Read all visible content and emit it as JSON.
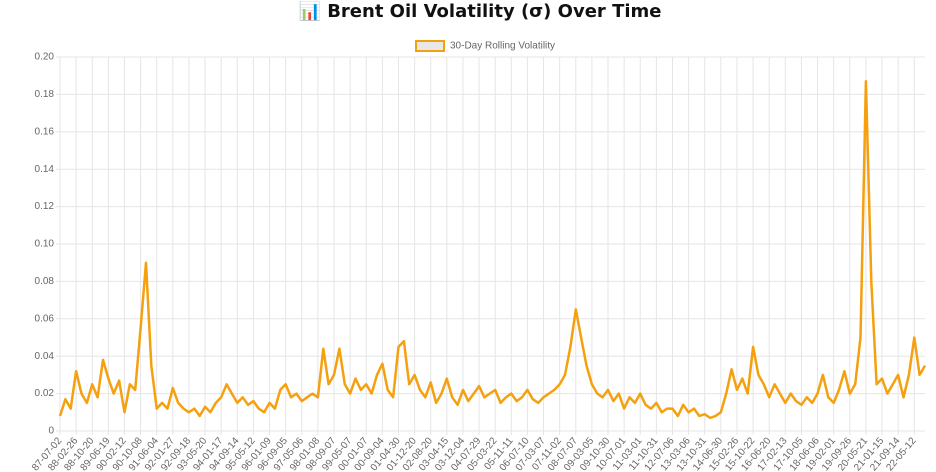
{
  "chart_data": {
    "type": "line",
    "title": "📊 Brent Oil Volatility (σ) Over Time",
    "legend": "top",
    "categories": [
      "87-07-02",
      null,
      null,
      "88-02-26",
      null,
      null,
      "88-10-20",
      null,
      null,
      "89-06-19",
      null,
      null,
      "90-02-12",
      null,
      null,
      "90-10-08",
      null,
      null,
      "91-06-04",
      null,
      null,
      "92-01-27",
      null,
      null,
      "92-09-18",
      null,
      null,
      "93-05-20",
      null,
      null,
      "94-01-17",
      null,
      null,
      "94-09-14",
      null,
      null,
      "95-05-12",
      null,
      null,
      "96-01-09",
      null,
      null,
      "96-09-05",
      null,
      null,
      "97-05-06",
      null,
      null,
      "98-01-08",
      null,
      null,
      "98-09-07",
      null,
      null,
      "99-05-07",
      null,
      null,
      "00-01-07",
      null,
      null,
      "00-09-04",
      null,
      null,
      "01-04-30",
      null,
      null,
      "01-12-20",
      null,
      null,
      "02-08-20",
      null,
      null,
      "03-04-15",
      null,
      null,
      "03-12-04",
      null,
      null,
      "04-07-29",
      null,
      null,
      "05-03-22",
      null,
      null,
      "05-11-11",
      null,
      null,
      "06-07-10",
      null,
      null,
      "07-03-07",
      null,
      null,
      "07-11-02",
      null,
      null,
      "08-07-07",
      null,
      null,
      "09-03-05",
      null,
      null,
      "09-10-30",
      null,
      null,
      "10-07-01",
      null,
      null,
      "11-03-01",
      null,
      null,
      "11-10-31",
      null,
      null,
      "12-07-06",
      null,
      null,
      "13-03-06",
      null,
      null,
      "13-10-31",
      null,
      null,
      "14-06-30",
      null,
      null,
      "15-02-26",
      null,
      null,
      "15-10-22",
      null,
      null,
      "16-06-20",
      null,
      null,
      "17-02-13",
      null,
      null,
      "17-10-05",
      null,
      null,
      "18-06-06",
      null,
      null,
      "19-02-01",
      null,
      null,
      "19-09-26",
      null,
      null,
      "20-05-21",
      null,
      null,
      "21-01-15",
      null,
      null,
      "21-09-14",
      null,
      null,
      "22-05-12",
      null,
      null
    ],
    "series": [
      {
        "name": "30-Day Rolling Volatility",
        "color": "#f5a00f",
        "values": [
          0.008,
          0.017,
          0.012,
          0.032,
          0.02,
          0.015,
          0.025,
          0.018,
          0.038,
          0.028,
          0.02,
          0.027,
          0.01,
          0.025,
          0.022,
          0.055,
          0.09,
          0.035,
          0.012,
          0.015,
          0.012,
          0.023,
          0.015,
          0.012,
          0.01,
          0.012,
          0.008,
          0.013,
          0.01,
          0.015,
          0.018,
          0.025,
          0.02,
          0.015,
          0.018,
          0.014,
          0.016,
          0.012,
          0.01,
          0.015,
          0.012,
          0.022,
          0.025,
          0.018,
          0.02,
          0.016,
          0.018,
          0.02,
          0.018,
          0.044,
          0.025,
          0.03,
          0.044,
          0.025,
          0.02,
          0.028,
          0.022,
          0.025,
          0.02,
          0.03,
          0.036,
          0.022,
          0.018,
          0.045,
          0.048,
          0.025,
          0.03,
          0.022,
          0.018,
          0.026,
          0.015,
          0.02,
          0.028,
          0.018,
          0.014,
          0.022,
          0.016,
          0.02,
          0.024,
          0.018,
          0.02,
          0.022,
          0.015,
          0.018,
          0.02,
          0.016,
          0.018,
          0.022,
          0.017,
          0.015,
          0.018,
          0.02,
          0.022,
          0.025,
          0.03,
          0.045,
          0.065,
          0.05,
          0.035,
          0.025,
          0.02,
          0.018,
          0.022,
          0.016,
          0.02,
          0.012,
          0.018,
          0.015,
          0.02,
          0.014,
          0.012,
          0.015,
          0.01,
          0.012,
          0.012,
          0.008,
          0.014,
          0.01,
          0.012,
          0.008,
          0.009,
          0.007,
          0.008,
          0.01,
          0.02,
          0.033,
          0.022,
          0.028,
          0.02,
          0.045,
          0.03,
          0.025,
          0.018,
          0.025,
          0.02,
          0.015,
          0.02,
          0.016,
          0.014,
          0.018,
          0.015,
          0.02,
          0.03,
          0.018,
          0.015,
          0.022,
          0.032,
          0.02,
          0.025,
          0.05,
          0.187,
          0.08,
          0.025,
          0.028,
          0.02,
          0.025,
          0.03,
          0.018,
          0.03,
          0.05,
          0.03,
          0.035
        ]
      }
    ],
    "ylim": [
      0,
      0.2
    ],
    "yticks": [
      0,
      0.02,
      0.04,
      0.06,
      0.08,
      {
        "value": 0.1,
        "label": "0.10"
      },
      0.12,
      0.14,
      0.16,
      0.18,
      {
        "value": 0.2,
        "label": "0.20"
      }
    ],
    "grid": true
  }
}
